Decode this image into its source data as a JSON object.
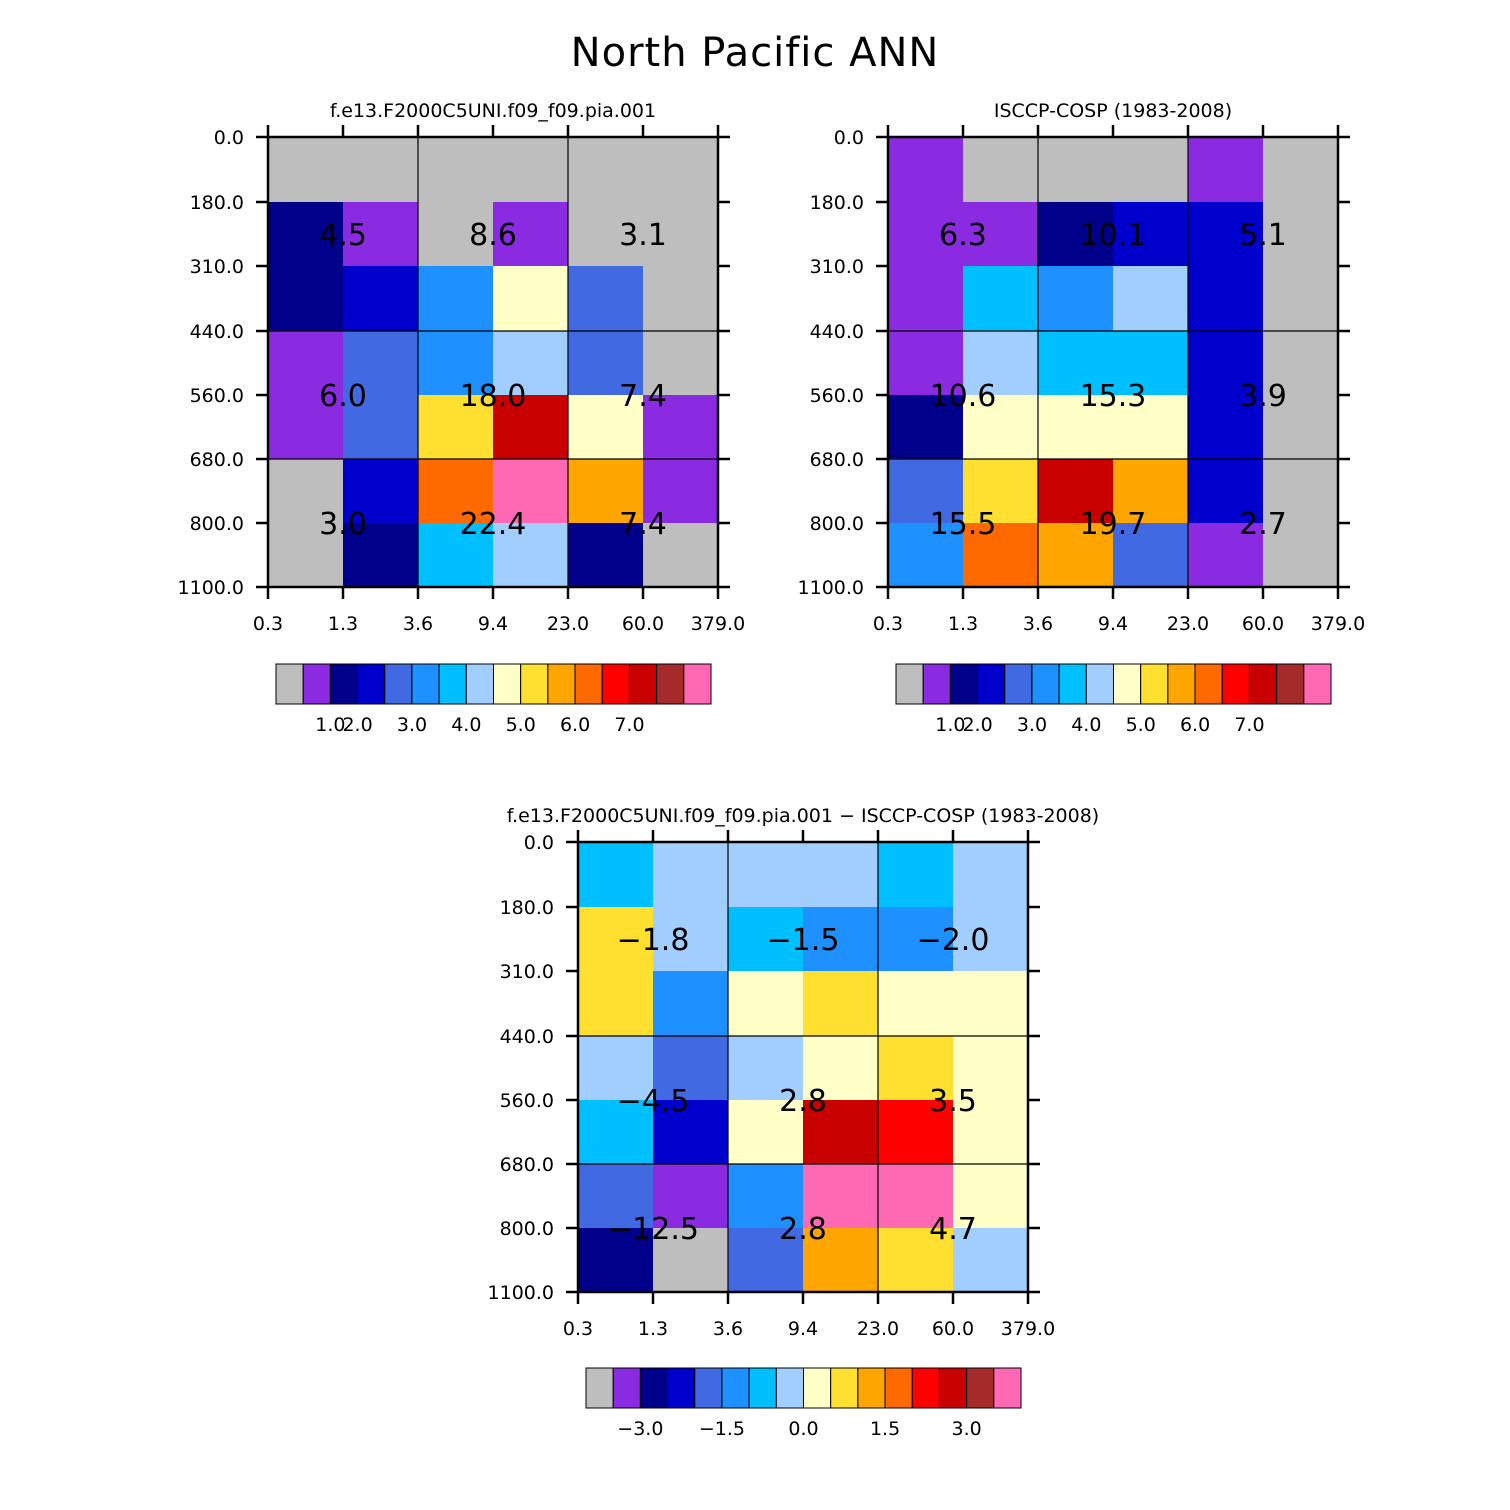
{
  "title": "North Pacific ANN",
  "colors": {
    "abs": [
      "#bebebe",
      "#8a2be2",
      "#00008b",
      "#0000cd",
      "#4169e1",
      "#1e90ff",
      "#00bfff",
      "#a2cdff",
      "#ffffc8",
      "#ffe030",
      "#ffa500",
      "#ff6a00",
      "#ff0000",
      "#c80000",
      "#a52a2a",
      "#ff69b4"
    ],
    "diff": [
      "#bebebe",
      "#8a2be2",
      "#00008b",
      "#0000cd",
      "#4169e1",
      "#1e90ff",
      "#00bfff",
      "#a2cdff",
      "#ffffc8",
      "#ffe030",
      "#ffa500",
      "#ff6a00",
      "#ff0000",
      "#c80000",
      "#a52a2a",
      "#ff69b4"
    ]
  },
  "chart_data": [
    {
      "type": "heatmap",
      "id": "model",
      "title": "f.e13.F2000C5UNI.f09_f09.pia.001",
      "x_tick_labels": [
        "0.3",
        "1.3",
        "3.6",
        "9.4",
        "23.0",
        "60.0",
        "379.0"
      ],
      "y_tick_labels": [
        "0.0",
        "180.0",
        "310.0",
        "440.0",
        "560.0",
        "680.0",
        "800.0",
        "1100.0"
      ],
      "cells": [
        [
          "gray",
          "gray",
          "gray",
          "gray",
          "gray",
          "gray"
        ],
        [
          "dark-navy",
          "purple",
          "gray",
          "purple",
          "gray",
          "gray"
        ],
        [
          "dark-navy",
          "medium-blue",
          "dodger-blue",
          "cream",
          "royal-blue",
          "gray"
        ],
        [
          "purple",
          "royal-blue",
          "dodger-blue",
          "light-blue",
          "royal-blue",
          "gray"
        ],
        [
          "purple",
          "royal-blue",
          "gold",
          "dark-red",
          "cream",
          "purple"
        ],
        [
          "gray",
          "medium-blue",
          "dark-orange",
          "pink",
          "orange",
          "purple"
        ],
        [
          "gray",
          "dark-navy",
          "deep-sky-blue",
          "light-blue",
          "dark-navy",
          "gray"
        ]
      ],
      "block_values": [
        [
          "4.5",
          "8.6",
          "3.1"
        ],
        [
          "6.0",
          "18.0",
          "7.4"
        ],
        [
          "3.0",
          "22.4",
          "7.4"
        ]
      ],
      "colorbar": {
        "labels": [
          "1.0",
          "2.0",
          "3.0",
          "4.0",
          "5.0",
          "6.0",
          "7.0"
        ]
      }
    },
    {
      "type": "heatmap",
      "id": "obs",
      "title": "ISCCP-COSP (1983-2008)",
      "x_tick_labels": [
        "0.3",
        "1.3",
        "3.6",
        "9.4",
        "23.0",
        "60.0",
        "379.0"
      ],
      "y_tick_labels": [
        "0.0",
        "180.0",
        "310.0",
        "440.0",
        "560.0",
        "680.0",
        "800.0",
        "1100.0"
      ],
      "cells": [
        [
          "purple",
          "gray",
          "gray",
          "gray",
          "purple",
          "gray"
        ],
        [
          "purple",
          "purple",
          "dark-navy",
          "medium-blue",
          "medium-blue",
          "gray"
        ],
        [
          "purple",
          "deep-sky-blue",
          "dodger-blue",
          "light-blue",
          "medium-blue",
          "gray"
        ],
        [
          "purple",
          "light-blue",
          "deep-sky-blue",
          "deep-sky-blue",
          "medium-blue",
          "gray"
        ],
        [
          "dark-navy",
          "cream",
          "cream",
          "cream",
          "medium-blue",
          "gray"
        ],
        [
          "royal-blue",
          "gold",
          "dark-red",
          "orange",
          "medium-blue",
          "gray"
        ],
        [
          "dodger-blue",
          "dark-orange",
          "orange",
          "royal-blue",
          "purple",
          "gray"
        ]
      ],
      "block_values": [
        [
          "6.3",
          "10.1",
          "5.1"
        ],
        [
          "10.6",
          "15.3",
          "3.9"
        ],
        [
          "15.5",
          "19.7",
          "2.7"
        ]
      ],
      "colorbar": {
        "labels": [
          "1.0",
          "2.0",
          "3.0",
          "4.0",
          "5.0",
          "6.0",
          "7.0"
        ]
      }
    },
    {
      "type": "heatmap",
      "id": "diff",
      "title": "f.e13.F2000C5UNI.f09_f09.pia.001 − ISCCP-COSP (1983-2008)",
      "x_tick_labels": [
        "0.3",
        "1.3",
        "3.6",
        "9.4",
        "23.0",
        "60.0",
        "379.0"
      ],
      "y_tick_labels": [
        "0.0",
        "180.0",
        "310.0",
        "440.0",
        "560.0",
        "680.0",
        "800.0",
        "1100.0"
      ],
      "cells": [
        [
          "deep-sky-blue",
          "light-blue",
          "light-blue",
          "light-blue",
          "deep-sky-blue",
          "light-blue"
        ],
        [
          "gold",
          "light-blue",
          "deep-sky-blue",
          "dodger-blue",
          "dodger-blue",
          "light-blue"
        ],
        [
          "gold",
          "dodger-blue",
          "cream",
          "gold",
          "cream",
          "cream"
        ],
        [
          "light-blue",
          "royal-blue",
          "light-blue",
          "cream",
          "gold",
          "cream"
        ],
        [
          "deep-sky-blue",
          "medium-blue",
          "cream",
          "dark-red",
          "red",
          "cream"
        ],
        [
          "royal-blue",
          "purple",
          "dodger-blue",
          "pink",
          "pink",
          "cream"
        ],
        [
          "dark-navy",
          "gray",
          "royal-blue",
          "orange",
          "gold",
          "light-blue"
        ]
      ],
      "block_values": [
        [
          "−1.8",
          "−1.5",
          "−2.0"
        ],
        [
          "−4.5",
          "2.8",
          "3.5"
        ],
        [
          "−12.5",
          "2.8",
          "4.7"
        ]
      ],
      "colorbar": {
        "labels": [
          "−3.0",
          "−1.5",
          "0.0",
          "1.5",
          "3.0"
        ]
      }
    }
  ],
  "palette": {
    "gray": "#bebebe",
    "purple": "#8a2be2",
    "dark-navy": "#00008b",
    "medium-blue": "#0000cd",
    "royal-blue": "#4169e1",
    "dodger-blue": "#1e90ff",
    "deep-sky-blue": "#00bfff",
    "light-blue": "#a2cdff",
    "cream": "#ffffc8",
    "gold": "#ffe030",
    "orange": "#ffa500",
    "dark-orange": "#ff6a00",
    "red": "#ff0000",
    "dark-red": "#c80000",
    "brown": "#a52a2a",
    "pink": "#ff69b4"
  }
}
